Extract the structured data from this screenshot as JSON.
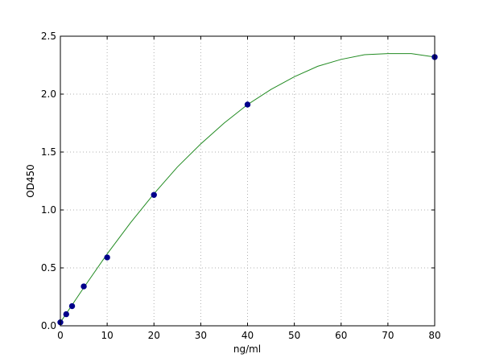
{
  "chart_data": {
    "type": "scatter",
    "title": "",
    "xlabel": "ng/ml",
    "ylabel": "OD450",
    "xlim": [
      0,
      80
    ],
    "ylim": [
      0,
      2.5
    ],
    "xticks": [
      "0",
      "10",
      "20",
      "30",
      "40",
      "50",
      "60",
      "70",
      "80"
    ],
    "yticks": [
      "0.0",
      "0.5",
      "1.0",
      "1.5",
      "2.0",
      "2.5"
    ],
    "grid": true,
    "legend": "none",
    "series": [
      {
        "kind": "points",
        "color": "#00008b",
        "x": [
          0,
          1.25,
          2.5,
          5,
          10,
          20,
          40,
          80
        ],
        "y": [
          0.03,
          0.1,
          0.17,
          0.34,
          0.59,
          1.13,
          1.91,
          2.32
        ]
      },
      {
        "kind": "fit-curve",
        "color": "#228b22",
        "x": [
          0,
          5,
          10,
          15,
          20,
          25,
          30,
          35,
          40,
          45,
          50,
          55,
          60,
          65,
          70,
          72,
          75,
          80
        ],
        "y": [
          0.03,
          0.33,
          0.62,
          0.89,
          1.14,
          1.37,
          1.57,
          1.75,
          1.91,
          2.04,
          2.15,
          2.24,
          2.3,
          2.34,
          2.35,
          2.35,
          2.35,
          2.32
        ]
      }
    ]
  }
}
